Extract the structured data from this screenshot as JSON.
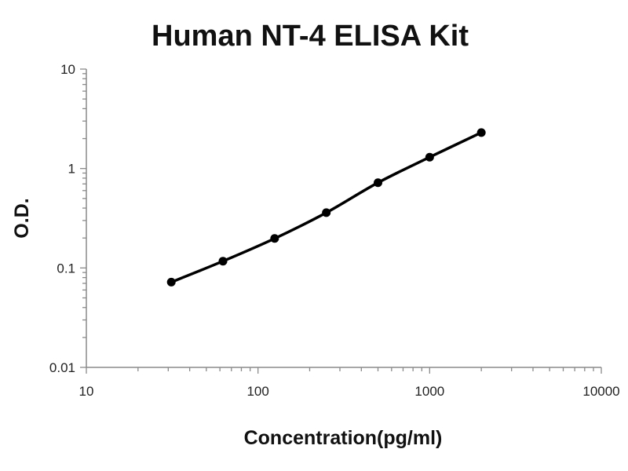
{
  "chart_data": {
    "type": "line",
    "title": "Human NT-4 ELISA Kit",
    "xlabel": "Concentration(pg/ml)",
    "ylabel": "O.D.",
    "x_scale": "log",
    "y_scale": "log",
    "xlim": [
      10,
      10000
    ],
    "ylim": [
      0.01,
      10
    ],
    "x_tick_labels": [
      "10",
      "100",
      "1000",
      "10000"
    ],
    "y_tick_labels": [
      "0.01",
      "0.1",
      "1",
      "10"
    ],
    "grid": false,
    "legend": "none",
    "series": [
      {
        "x": [
          31.25,
          62.5,
          125,
          250,
          500,
          1000,
          2000
        ],
        "y": [
          0.072,
          0.117,
          0.198,
          0.36,
          0.72,
          1.3,
          2.3
        ],
        "color": "#000000",
        "marker": "circle"
      }
    ]
  }
}
